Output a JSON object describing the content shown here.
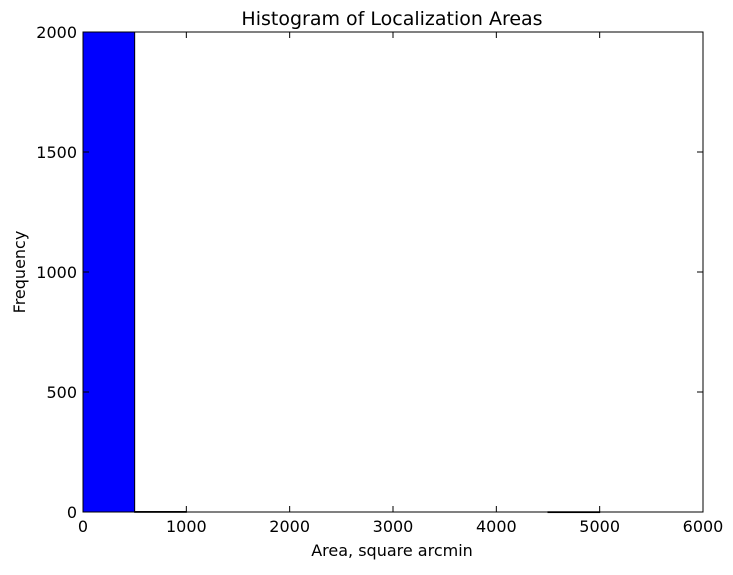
{
  "chart_data": {
    "type": "bar",
    "title": "Histogram of Localization Areas",
    "xlabel": "Area, square arcmin",
    "ylabel": "Frequency",
    "xlim": [
      0,
      6000
    ],
    "ylim": [
      0,
      2000
    ],
    "xticks": [
      0,
      1000,
      2000,
      3000,
      4000,
      5000,
      6000
    ],
    "yticks": [
      0,
      500,
      1000,
      1500,
      2000
    ],
    "bin_edges": [
      0,
      500,
      1000,
      1500,
      2000,
      2500,
      3000,
      3500,
      4000,
      4500,
      5000
    ],
    "values": [
      2000,
      2,
      0,
      0,
      0,
      0,
      0,
      0,
      0,
      1
    ],
    "bar_color": "#0000ff",
    "grid": false,
    "legend": false
  }
}
